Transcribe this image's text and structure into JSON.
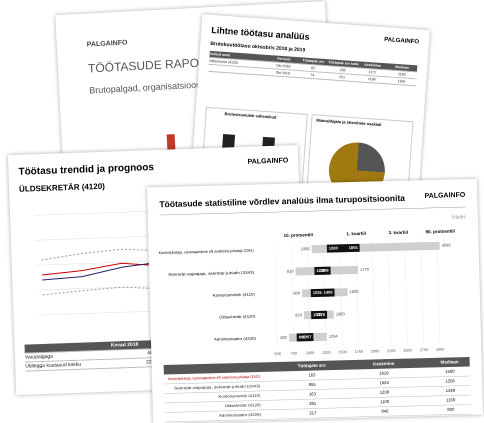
{
  "cover": {
    "logo": "PALGAINFO",
    "title": "TÖÖTASUDE RAPORT",
    "subtitle": "Brutopalgad, organisatsioonid ja t"
  },
  "simple": {
    "title": "Lihtne töötasu analüüs",
    "subtitle": "Brutokuutöötasu oktoobris 2018 ja 2019",
    "logo": "PALGAINFO",
    "table_header": [
      "Valitud amet",
      "Periood",
      "Töötajate arv",
      "Töötajate arv kokku",
      "Keskmine",
      "Mediaan"
    ],
    "rows": [
      [
        "Üldsekretär (4120)",
        "Okt 2018",
        "82",
        "236",
        "1171",
        "1180"
      ],
      [
        "",
        "Okt 2019",
        "74",
        "251",
        "1198",
        "1166"
      ]
    ],
    "chart1": "Brutosissetulek vahemikud",
    "chart2": "Maavaldajate ja ettevõtete osakaal"
  },
  "trend": {
    "title": "Töötasu trendid ja prognoos",
    "subtitle": "ÜLDSEKRETÄR (4120)",
    "logo": "PALGAINFO",
    "table_header": [
      "",
      "Kevad 2018",
      "Sügis 2018",
      "Kevad"
    ],
    "rows": [
      [
        "Varupalgaga",
        "46",
        "73"
      ],
      [
        "Üldlegga kuutasud kokku",
        "220",
        "236"
      ]
    ]
  },
  "front": {
    "title": "Töötasude statistiline võrdlev analüüs ilma turupositsioonita",
    "logo": "PALGAINFO",
    "note": "Näidis",
    "headers": [
      "10. protsentiil",
      "1. kvartiil",
      "3. kvartiil",
      "90. protsentiil"
    ],
    "xlim": [
      250,
      3250
    ],
    "xticks": [
      500,
      750,
      1000,
      1250,
      1500,
      1750,
      2000,
      2250,
      2500,
      2750,
      3000
    ],
    "rows": [
      {
        "label": "Kontorijuhataja, varamajanduse või osakonna juhataja (3341)",
        "p10": 1066,
        "q1": 1300,
        "q3": 1804,
        "p90": 3036
      },
      {
        "label": "Sekretär-asjaajaja, sekretär-juhiabi (3343)",
        "p10": 810,
        "q1": 1100,
        "q3": 1349,
        "p90": 1770
      },
      {
        "label": "Kontoriametnik (4110)",
        "p10": 900,
        "q1": 1035,
        "q3": 1400,
        "p90": 1600
      },
      {
        "label": "Üldsekretär (4120)",
        "p10": 920,
        "q1": 1031,
        "q3": 1276,
        "p90": 1380
      },
      {
        "label": "Administraator (4226)",
        "p10": 682,
        "q1": 800,
        "q3": 1057,
        "p90": 1264
      }
    ],
    "table_header": [
      "Töötajate arv",
      "Keskmine",
      "Mediaan"
    ],
    "table": [
      [
        "163",
        "1619",
        "1500"
      ],
      [
        "955",
        "1524",
        "1256"
      ],
      [
        "163",
        "1238",
        "1248"
      ],
      [
        "291",
        "1100",
        "1160"
      ],
      [
        "217",
        "846",
        "820"
      ]
    ]
  }
}
